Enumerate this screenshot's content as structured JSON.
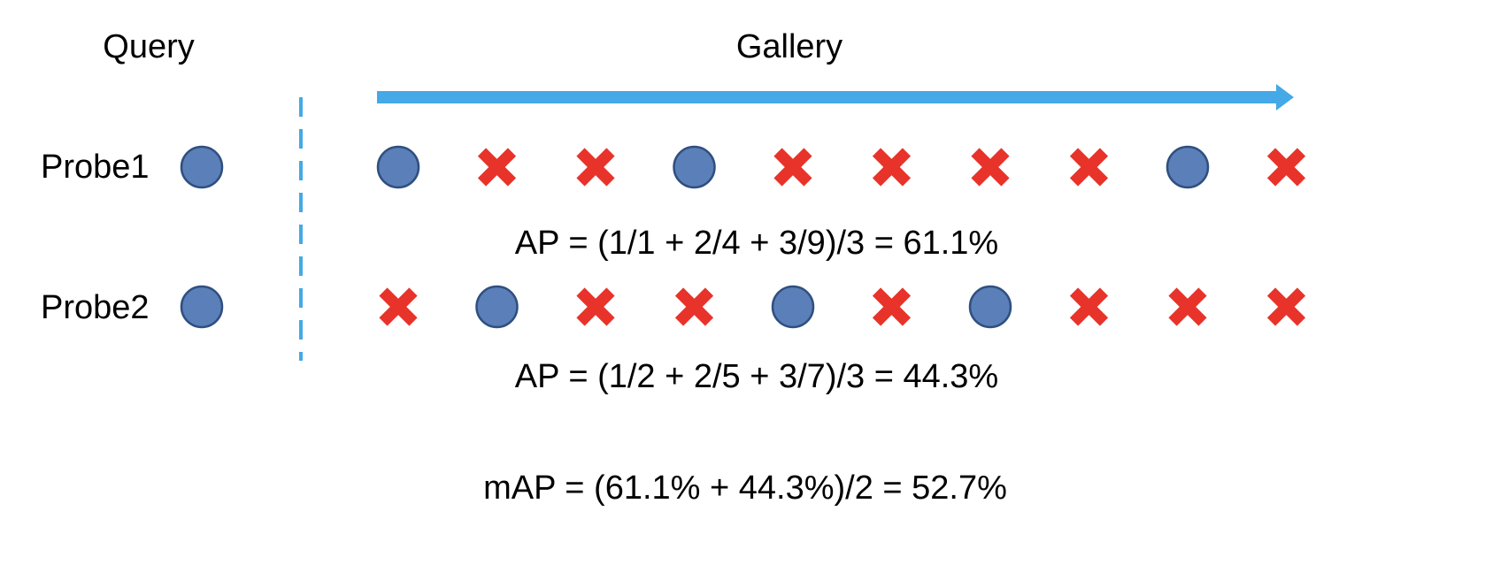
{
  "headers": {
    "query": "Query",
    "gallery": "Gallery"
  },
  "colors": {
    "match_fill": "#5b7fb8",
    "match_stroke": "#2f4f7f",
    "mismatch": "#e8332a",
    "arrow": "#44a9e6",
    "divider": "#44a9e6"
  },
  "probes": [
    {
      "label": "Probe1",
      "query_icon": "match-circle",
      "gallery": [
        "match",
        "mismatch",
        "mismatch",
        "match",
        "mismatch",
        "mismatch",
        "mismatch",
        "mismatch",
        "match",
        "mismatch"
      ],
      "ap_formula": "AP = (1/1 + 2/4 + 3/9)/3 = 61.1%"
    },
    {
      "label": "Probe2",
      "query_icon": "match-circle",
      "gallery": [
        "mismatch",
        "match",
        "mismatch",
        "mismatch",
        "match",
        "mismatch",
        "match",
        "mismatch",
        "mismatch",
        "mismatch"
      ],
      "ap_formula": "AP = (1/2 + 2/5 + 3/7)/3 = 44.3%"
    }
  ],
  "map_formula": "mAP = (61.1% + 44.3%)/2 = 52.7%"
}
